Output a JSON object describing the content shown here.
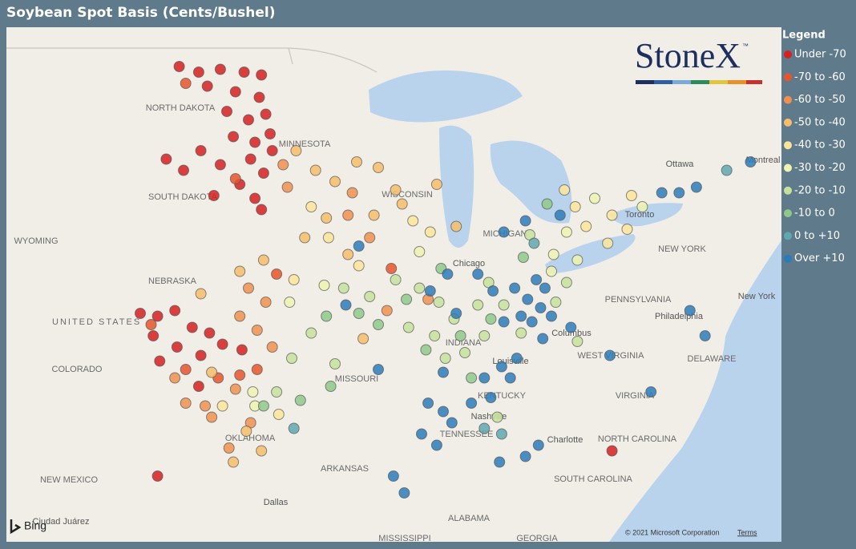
{
  "title": "Soybean Spot Basis (Cents/Bushel)",
  "legend": {
    "title": "Legend",
    "items": [
      {
        "name": "Under -70",
        "color": "#d42020"
      },
      {
        "name": "-70 to -60",
        "color": "#e8552c"
      },
      {
        "name": "-60 to -50",
        "color": "#f0904f"
      },
      {
        "name": "-50 to -40",
        "color": "#f6bd6b"
      },
      {
        "name": "-40 to -30",
        "color": "#fbe59a"
      },
      {
        "name": "-30 to -20",
        "color": "#eef3b0"
      },
      {
        "name": "-20 to -10",
        "color": "#c5e29c"
      },
      {
        "name": "-10 to 0",
        "color": "#8fc98a"
      },
      {
        "name": "0 to +10",
        "color": "#5fa8b0"
      },
      {
        "name": "Over +10",
        "color": "#2b7bba"
      }
    ]
  },
  "logo": {
    "name": "StoneX",
    "mark": "™"
  },
  "attribution": {
    "provider": "Bing",
    "copyright": "© 2021 Microsoft Corporation",
    "terms": "Terms"
  },
  "map_labels": [
    "UNITED STATES",
    "NORTH DAKOTA",
    "MINNESOTA",
    "SOUTH DAKOTA",
    "WYOMING",
    "NEBRASKA",
    "COLORADO",
    "MISSOURI",
    "KENTUCKY",
    "WEST VIRGINIA",
    "VIRGINIA",
    "NORTH CAROLINA",
    "TENNESSEE",
    "SOUTH CAROLINA",
    "ARKANSAS",
    "OKLAHOMA",
    "NEW MEXICO",
    "ALABAMA",
    "PENNSYLVANIA",
    "NEW YORK",
    "MISSISSIPPI",
    "WISCONSIN",
    "MICHIGAN",
    "INDIANA",
    "GEORGIA",
    "DELAWARE",
    "Chicago",
    "Columbus",
    "Louisville",
    "Nashville",
    "Philadelphia",
    "Charlotte",
    "Dallas",
    "Ottawa",
    "Toronto",
    "Montreal",
    "New York",
    "Ciudad Juárez"
  ],
  "points": [
    [
      -100.8,
      48.9,
      0
    ],
    [
      -99.9,
      48.7,
      0
    ],
    [
      -98.9,
      48.8,
      0
    ],
    [
      -97.8,
      48.7,
      0
    ],
    [
      -97.0,
      48.6,
      0
    ],
    [
      -99.5,
      48.2,
      0
    ],
    [
      -98.2,
      48.0,
      0
    ],
    [
      -97.1,
      47.8,
      0
    ],
    [
      -96.8,
      47.2,
      0
    ],
    [
      -97.6,
      47.0,
      0
    ],
    [
      -98.6,
      47.3,
      0
    ],
    [
      -96.6,
      46.5,
      0
    ],
    [
      -97.3,
      46.2,
      0
    ],
    [
      -98.3,
      46.4,
      0
    ],
    [
      -99.8,
      45.9,
      0
    ],
    [
      -98.9,
      45.4,
      0
    ],
    [
      -97.5,
      45.6,
      0
    ],
    [
      -96.9,
      45.1,
      0
    ],
    [
      -98.0,
      44.7,
      0
    ],
    [
      -99.2,
      44.3,
      0
    ],
    [
      -97.3,
      44.2,
      0
    ],
    [
      -100.6,
      45.2,
      0
    ],
    [
      -101.4,
      45.6,
      0
    ],
    [
      -96.5,
      45.9,
      0
    ],
    [
      -97.0,
      43.8,
      0
    ],
    [
      -102.6,
      40.1,
      0
    ],
    [
      -101.8,
      40.0,
      0
    ],
    [
      -101.0,
      40.2,
      0
    ],
    [
      -102.0,
      39.3,
      0
    ],
    [
      -100.2,
      39.6,
      0
    ],
    [
      -99.4,
      39.4,
      0
    ],
    [
      -100.9,
      38.9,
      0
    ],
    [
      -99.8,
      38.6,
      0
    ],
    [
      -98.8,
      39.0,
      0
    ],
    [
      -101.7,
      38.4,
      0
    ],
    [
      -97.9,
      38.8,
      0
    ],
    [
      -99.9,
      37.5,
      0
    ],
    [
      -101.8,
      34.3,
      0
    ],
    [
      -80.8,
      35.2,
      0
    ],
    [
      -100.5,
      48.3,
      1
    ],
    [
      -98.2,
      44.9,
      1
    ],
    [
      -99.0,
      37.8,
      1
    ],
    [
      -98.0,
      37.9,
      1
    ],
    [
      -100.5,
      38.1,
      1
    ],
    [
      -102.1,
      39.7,
      1
    ],
    [
      -96.3,
      41.5,
      1
    ],
    [
      -91.0,
      41.7,
      1
    ],
    [
      -97.2,
      38.1,
      1
    ],
    [
      -96.0,
      45.4,
      2
    ],
    [
      -95.8,
      44.6,
      2
    ],
    [
      -97.6,
      41.0,
      2
    ],
    [
      -96.8,
      40.5,
      2
    ],
    [
      -98.0,
      40.0,
      2
    ],
    [
      -97.2,
      39.5,
      2
    ],
    [
      -96.5,
      38.9,
      2
    ],
    [
      -98.2,
      37.4,
      2
    ],
    [
      -99.6,
      36.8,
      2
    ],
    [
      -99.3,
      36.4,
      2
    ],
    [
      -100.5,
      36.9,
      2
    ],
    [
      -101.0,
      37.8,
      2
    ],
    [
      -93.0,
      43.6,
      2
    ],
    [
      -92.0,
      42.8,
      2
    ],
    [
      -91.2,
      40.2,
      2
    ],
    [
      -89.3,
      40.6,
      2
    ],
    [
      -92.8,
      44.4,
      2
    ],
    [
      -97.5,
      36.2,
      2
    ],
    [
      -98.5,
      35.3,
      2
    ],
    [
      -95.4,
      45.9,
      3
    ],
    [
      -94.5,
      45.2,
      3
    ],
    [
      -93.6,
      44.8,
      3
    ],
    [
      -92.6,
      45.5,
      3
    ],
    [
      -91.6,
      45.3,
      3
    ],
    [
      -90.8,
      44.5,
      3
    ],
    [
      -94.0,
      43.5,
      3
    ],
    [
      -95.0,
      42.8,
      3
    ],
    [
      -93.0,
      42.2,
      3
    ],
    [
      -91.8,
      43.6,
      3
    ],
    [
      -96.9,
      42.0,
      3
    ],
    [
      -98.0,
      41.6,
      3
    ],
    [
      -99.8,
      40.8,
      3
    ],
    [
      -97.7,
      35.9,
      3
    ],
    [
      -98.3,
      34.8,
      3
    ],
    [
      -97.0,
      35.2,
      3
    ],
    [
      -99.3,
      38.0,
      3
    ],
    [
      -92.3,
      39.2,
      3
    ],
    [
      -90.5,
      44.0,
      3
    ],
    [
      -88.9,
      44.7,
      3
    ],
    [
      -88.0,
      43.2,
      3
    ],
    [
      -94.7,
      43.9,
      4
    ],
    [
      -93.9,
      42.8,
      4
    ],
    [
      -92.5,
      41.8,
      4
    ],
    [
      -95.5,
      41.3,
      4
    ],
    [
      -96.2,
      36.5,
      4
    ],
    [
      -98.8,
      36.8,
      4
    ],
    [
      -90.0,
      43.4,
      4
    ],
    [
      -89.2,
      43.0,
      4
    ],
    [
      -83.0,
      44.5,
      4
    ],
    [
      -82.5,
      43.9,
      4
    ],
    [
      -82.0,
      43.2,
      4
    ],
    [
      -80.8,
      43.6,
      4
    ],
    [
      -80.1,
      43.1,
      4
    ],
    [
      -81.0,
      42.6,
      4
    ],
    [
      -79.9,
      44.3,
      4
    ],
    [
      -94.1,
      41.1,
      5
    ],
    [
      -95.7,
      40.5,
      5
    ],
    [
      -97.3,
      36.8,
      5
    ],
    [
      -89.7,
      42.3,
      5
    ],
    [
      -83.5,
      42.2,
      5
    ],
    [
      -82.4,
      42.0,
      5
    ],
    [
      -83.6,
      41.6,
      5
    ],
    [
      -79.4,
      43.9,
      5
    ],
    [
      -81.6,
      44.2,
      5
    ],
    [
      -82.9,
      43.0,
      5
    ],
    [
      -97.4,
      37.3,
      5
    ],
    [
      -93.2,
      41.0,
      6
    ],
    [
      -92.0,
      40.7,
      6
    ],
    [
      -90.8,
      41.3,
      6
    ],
    [
      -89.7,
      41.0,
      6
    ],
    [
      -88.8,
      40.5,
      6
    ],
    [
      -90.2,
      39.6,
      6
    ],
    [
      -89.0,
      39.3,
      6
    ],
    [
      -88.1,
      39.9,
      6
    ],
    [
      -87.0,
      40.4,
      6
    ],
    [
      -86.5,
      41.2,
      6
    ],
    [
      -94.7,
      39.4,
      6
    ],
    [
      -95.6,
      38.5,
      6
    ],
    [
      -96.3,
      37.3,
      6
    ],
    [
      -93.6,
      38.3,
      6
    ],
    [
      -88.5,
      38.5,
      6
    ],
    [
      -87.6,
      38.7,
      6
    ],
    [
      -86.7,
      39.3,
      6
    ],
    [
      -85.8,
      40.4,
      6
    ],
    [
      -85.0,
      39.4,
      6
    ],
    [
      -83.4,
      40.5,
      6
    ],
    [
      -84.6,
      42.9,
      6
    ],
    [
      -82.4,
      39.1,
      6
    ],
    [
      -86.1,
      36.4,
      6
    ],
    [
      -82.9,
      41.2,
      6
    ],
    [
      -94.0,
      40.0,
      7
    ],
    [
      -92.5,
      40.1,
      7
    ],
    [
      -91.6,
      39.7,
      7
    ],
    [
      -90.3,
      40.6,
      7
    ],
    [
      -89.4,
      38.8,
      7
    ],
    [
      -87.8,
      39.3,
      7
    ],
    [
      -86.4,
      39.9,
      7
    ],
    [
      -95.2,
      37.0,
      7
    ],
    [
      -96.9,
      36.8,
      7
    ],
    [
      -93.8,
      37.5,
      7
    ],
    [
      -87.3,
      37.8,
      7
    ],
    [
      -84.9,
      42.1,
      7
    ],
    [
      -83.8,
      44.0,
      7
    ],
    [
      -88.7,
      41.7,
      7
    ],
    [
      -86.7,
      36.0,
      8
    ],
    [
      -85.9,
      35.8,
      8
    ],
    [
      -75.5,
      45.2,
      8
    ],
    [
      -95.5,
      36.0,
      8
    ],
    [
      -84.4,
      42.6,
      8
    ],
    [
      -85.3,
      41.0,
      9
    ],
    [
      -84.7,
      40.6,
      9
    ],
    [
      -84.1,
      40.3,
      9
    ],
    [
      -83.6,
      40.0,
      9
    ],
    [
      -84.5,
      39.8,
      9
    ],
    [
      -85.0,
      40.0,
      9
    ],
    [
      -83.9,
      41.0,
      9
    ],
    [
      -84.3,
      41.3,
      9
    ],
    [
      -84.0,
      39.2,
      9
    ],
    [
      -82.7,
      39.6,
      9
    ],
    [
      -85.8,
      39.8,
      9
    ],
    [
      -86.3,
      40.9,
      9
    ],
    [
      -87.0,
      41.5,
      9
    ],
    [
      -88.4,
      41.5,
      9
    ],
    [
      -88.0,
      40.1,
      9
    ],
    [
      -89.2,
      40.9,
      9
    ],
    [
      -88.6,
      38.0,
      9
    ],
    [
      -89.3,
      36.9,
      9
    ],
    [
      -88.6,
      36.6,
      9
    ],
    [
      -89.6,
      35.8,
      9
    ],
    [
      -88.9,
      35.4,
      9
    ],
    [
      -88.2,
      36.2,
      9
    ],
    [
      -87.3,
      36.9,
      9
    ],
    [
      -86.4,
      37.1,
      9
    ],
    [
      -85.5,
      37.8,
      9
    ],
    [
      -85.2,
      38.5,
      9
    ],
    [
      -85.9,
      38.2,
      9
    ],
    [
      -84.2,
      35.4,
      9
    ],
    [
      -84.8,
      35.0,
      9
    ],
    [
      -86.0,
      34.8,
      9
    ],
    [
      -90.9,
      34.3,
      9
    ],
    [
      -90.4,
      33.7,
      9
    ],
    [
      -93.1,
      40.4,
      9
    ],
    [
      -91.6,
      38.1,
      9
    ],
    [
      -92.5,
      42.5,
      9
    ],
    [
      -83.2,
      43.6,
      9
    ],
    [
      -84.8,
      43.4,
      9
    ],
    [
      -85.8,
      43.0,
      9
    ],
    [
      -78.5,
      44.4,
      9
    ],
    [
      -77.7,
      44.4,
      9
    ],
    [
      -76.9,
      44.6,
      9
    ],
    [
      -74.4,
      45.5,
      9
    ],
    [
      -77.2,
      40.2,
      9
    ],
    [
      -76.5,
      39.3,
      9
    ],
    [
      -79.0,
      37.3,
      9
    ],
    [
      -80.9,
      38.6,
      9
    ],
    [
      -86.7,
      37.8,
      9
    ]
  ]
}
